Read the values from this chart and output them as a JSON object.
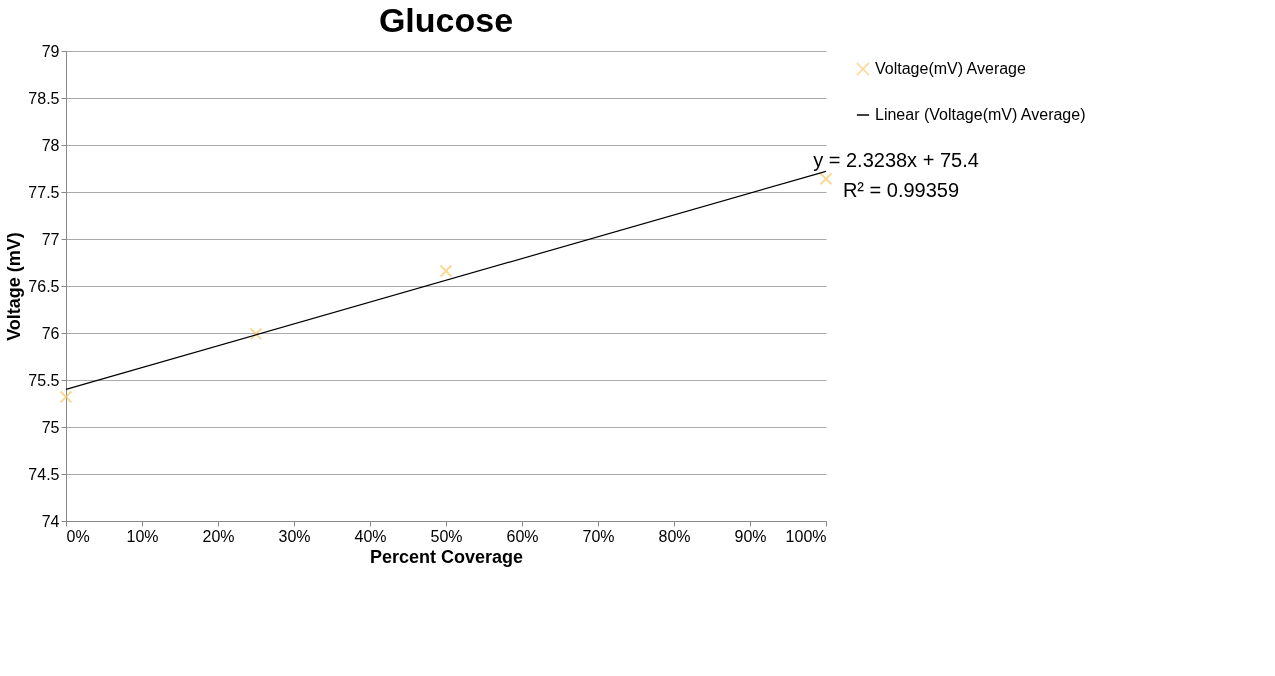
{
  "chart_data": {
    "type": "scatter",
    "title": "Glucose",
    "xlabel": "Percent Coverage",
    "ylabel": "Voltage (mV)",
    "xlim": [
      0,
      1
    ],
    "xticks": [
      {
        "value": 0,
        "label": "0%"
      },
      {
        "value": 0.1,
        "label": "10%"
      },
      {
        "value": 0.2,
        "label": "20%"
      },
      {
        "value": 0.3,
        "label": "30%"
      },
      {
        "value": 0.4,
        "label": "40%"
      },
      {
        "value": 0.5,
        "label": "50%"
      },
      {
        "value": 0.6,
        "label": "60%"
      },
      {
        "value": 0.7,
        "label": "70%"
      },
      {
        "value": 0.8,
        "label": "80%"
      },
      {
        "value": 0.9,
        "label": "90%"
      },
      {
        "value": 1,
        "label": "100%"
      }
    ],
    "ylim": [
      74,
      79
    ],
    "yticks": [
      74,
      74.5,
      75,
      75.5,
      76,
      76.5,
      77,
      77.5,
      78,
      78.5,
      79
    ],
    "grid": "y",
    "legend": "right",
    "series": [
      {
        "name": "Voltage(mV) Average",
        "marker": "cross",
        "color": "#f9c96b",
        "x": [
          0,
          0.25,
          0.5,
          1
        ],
        "values": [
          75.32,
          75.99,
          76.66,
          77.64
        ]
      },
      {
        "name": "Linear (Voltage(mV) Average)",
        "type": "line",
        "color": "#000000",
        "x": [
          0,
          1
        ],
        "values": [
          75.4,
          77.72
        ]
      }
    ],
    "annotations": [
      {
        "text": "y = 2.3238x + 75.4",
        "x": 1,
        "y": 77.72
      },
      {
        "text": "R² = 0.99359",
        "x": 1,
        "y": 77.72
      }
    ]
  }
}
